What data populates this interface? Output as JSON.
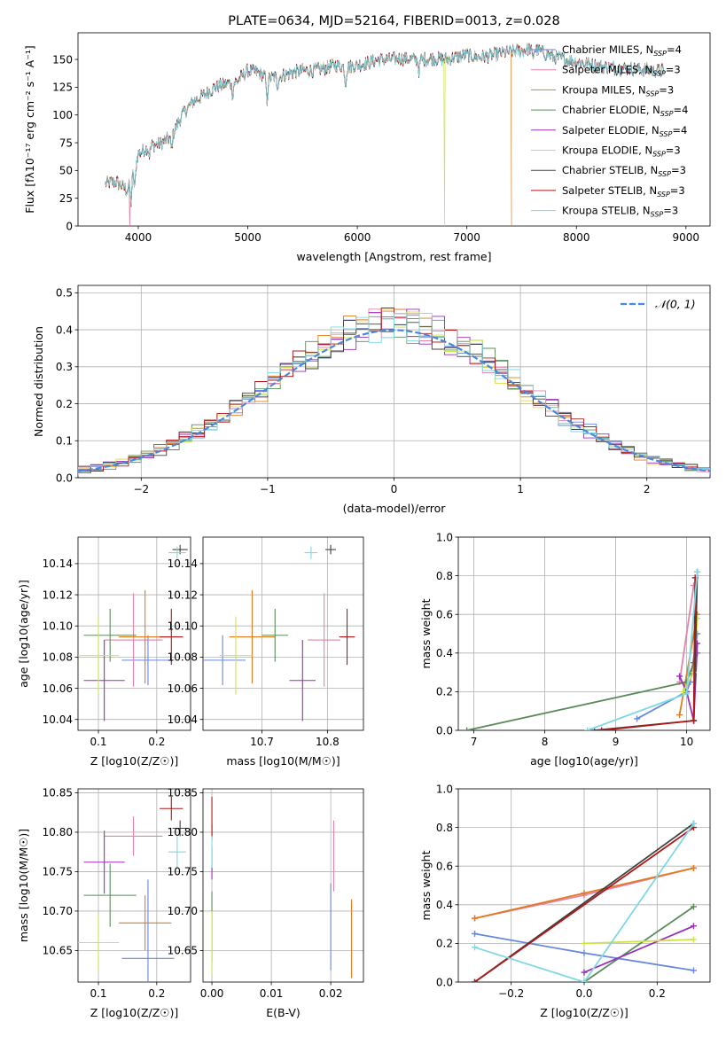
{
  "colors": {
    "chabrier_miles": "#6688dd",
    "salpeter_miles": "#e881aa",
    "kroupa_miles": "#e07b1f",
    "chabrier_elodie": "#5a8c5a",
    "salpeter_elodie": "#9a2ebb",
    "kroupa_elodie": "#cfe24a",
    "chabrier_stelib": "#404040",
    "salpeter_stelib": "#b01818",
    "kroupa_stelib": "#7fd8e2",
    "gauss": "#4a88dd"
  },
  "chart_data": [
    {
      "id": "spectrum",
      "type": "line",
      "title": "PLATE=0634, MJD=52164, FIBERID=0013, z=0.028",
      "xlabel": "wavelength [Angstrom, rest frame]",
      "ylabel": "Flux [fλ10⁻¹⁷ erg cm⁻² s⁻¹ A⁻¹]",
      "xlim": [
        3450,
        9220
      ],
      "ylim": [
        0,
        174
      ],
      "xticks": [
        4000,
        5000,
        6000,
        7000,
        8000,
        9000
      ],
      "yticks": [
        0,
        25,
        50,
        75,
        100,
        125,
        150
      ],
      "continuum": {
        "x": [
          3700,
          3800,
          3900,
          3950,
          4000,
          4100,
          4200,
          4300,
          4400,
          4500,
          4600,
          4700,
          4800,
          4900,
          5000,
          5100,
          5200,
          5300,
          5400,
          5500,
          5600,
          5700,
          5800,
          5900,
          6000,
          6100,
          6200,
          6300,
          6400,
          6500,
          6600,
          6700,
          6800,
          6900,
          7000,
          7100,
          7200,
          7300,
          7400,
          7500,
          7600,
          7700,
          7800,
          7900,
          8000,
          8100,
          8200,
          8300,
          8400,
          8500,
          8600,
          8700,
          8800
        ],
        "y": [
          38,
          40,
          32,
          48,
          65,
          72,
          74,
          80,
          100,
          112,
          118,
          125,
          128,
          130,
          140,
          138,
          133,
          135,
          138,
          140,
          140,
          142,
          145,
          143,
          145,
          147,
          150,
          150,
          151,
          150,
          150,
          151,
          150,
          152,
          154,
          152,
          153,
          155,
          157,
          158,
          160,
          156,
          152,
          150,
          148,
          146,
          144,
          143,
          142,
          142,
          141,
          140,
          140
        ]
      },
      "drops": [
        {
          "series": "Salpeter MILES",
          "x": 3920
        },
        {
          "series": "Kroupa ELODIE",
          "x": 6795
        },
        {
          "series": "Kroupa MILES",
          "x": 7410
        }
      ],
      "legend": [
        "Chabrier MILES, N_SSP=4",
        "Salpeter MILES, N_SSP=3",
        "Kroupa MILES, N_SSP=3",
        "Chabrier ELODIE, N_SSP=4",
        "Salpeter ELODIE, N_SSP=4",
        "Kroupa ELODIE, N_SSP=3",
        "Chabrier STELIB, N_SSP=3",
        "Salpeter STELIB, N_SSP=3",
        "Kroupa STELIB, N_SSP=3"
      ],
      "legend_placement": "upper right",
      "grid": false
    },
    {
      "id": "residuals",
      "type": "histogram",
      "xlabel": "(data-model)/error",
      "ylabel": "Normed distribution",
      "xlim": [
        -2.5,
        2.5
      ],
      "ylim": [
        0,
        0.52
      ],
      "xticks": [
        -2,
        -1,
        0,
        1,
        2
      ],
      "yticks": [
        0.0,
        0.1,
        0.2,
        0.3,
        0.4,
        0.5
      ],
      "bin_width": 0.1,
      "legend": [
        "N(0,1)"
      ],
      "legend_placement": "upper right",
      "grid": true
    },
    {
      "id": "age_vs_Z",
      "type": "scatter",
      "xlabel": "Z [log10(Z/Z☉)]",
      "ylabel": "age  [log10(age/yr)]",
      "xlim": [
        0.065,
        0.258
      ],
      "ylim": [
        10.033,
        10.157
      ],
      "xticks": [
        0.1,
        0.2
      ],
      "yticks": [
        10.04,
        10.06,
        10.08,
        10.1,
        10.12,
        10.14
      ],
      "grid": true,
      "points": [
        {
          "series": "Chabrier MILES",
          "x": 0.185,
          "y": 10.078,
          "xerr": 0.045,
          "yerr": 0.016
        },
        {
          "series": "Salpeter MILES",
          "x": 0.16,
          "y": 10.091,
          "xerr": 0.05,
          "yerr": 0.03
        },
        {
          "series": "Kroupa MILES",
          "x": 0.18,
          "y": 10.093,
          "xerr": 0.045,
          "yerr": 0.03
        },
        {
          "series": "Chabrier ELODIE",
          "x": 0.12,
          "y": 10.094,
          "xerr": 0.045,
          "yerr": 0.017
        },
        {
          "series": "Salpeter ELODIE",
          "x": 0.11,
          "y": 10.065,
          "xerr": 0.035,
          "yerr": 0.026
        },
        {
          "series": "Kroupa ELODIE",
          "x": 0.1,
          "y": 10.081,
          "xerr": 0.035,
          "yerr": 0.025
        },
        {
          "series": "Chabrier STELIB",
          "x": 0.24,
          "y": 10.149,
          "xerr": 0.013,
          "yerr": 0.003
        },
        {
          "series": "Salpeter STELIB",
          "x": 0.225,
          "y": 10.093,
          "xerr": 0.02,
          "yerr": 0.018
        },
        {
          "series": "Kroupa STELIB",
          "x": 0.235,
          "y": 10.147,
          "xerr": 0.015,
          "yerr": 0.004
        }
      ]
    },
    {
      "id": "age_vs_mass",
      "type": "scatter",
      "xlabel": "mass [log10(M/M☉)]",
      "ylabel": "",
      "xlim": [
        10.61,
        10.855
      ],
      "ylim": [
        10.033,
        10.157
      ],
      "xticks": [
        10.7,
        10.8
      ],
      "yticks": [
        10.04,
        10.06,
        10.08,
        10.1,
        10.12,
        10.14
      ],
      "grid": true,
      "points": [
        {
          "series": "Chabrier MILES",
          "x": 10.64,
          "y": 10.078,
          "xerr": 0.035,
          "yerr": 0.016
        },
        {
          "series": "Salpeter MILES",
          "x": 10.795,
          "y": 10.091,
          "xerr": 0.025,
          "yerr": 0.03
        },
        {
          "series": "Kroupa MILES",
          "x": 10.685,
          "y": 10.093,
          "xerr": 0.035,
          "yerr": 0.03
        },
        {
          "series": "Chabrier ELODIE",
          "x": 10.72,
          "y": 10.094,
          "xerr": 0.02,
          "yerr": 0.017
        },
        {
          "series": "Salpeter ELODIE",
          "x": 10.762,
          "y": 10.065,
          "xerr": 0.02,
          "yerr": 0.026
        },
        {
          "series": "Kroupa ELODIE",
          "x": 10.66,
          "y": 10.081,
          "xerr": 0.025,
          "yerr": 0.025
        },
        {
          "series": "Chabrier STELIB",
          "x": 10.805,
          "y": 10.149,
          "xerr": 0.008,
          "yerr": 0.003
        },
        {
          "series": "Salpeter STELIB",
          "x": 10.83,
          "y": 10.093,
          "xerr": 0.012,
          "yerr": 0.018
        },
        {
          "series": "Kroupa STELIB",
          "x": 10.775,
          "y": 10.147,
          "xerr": 0.01,
          "yerr": 0.004
        }
      ]
    },
    {
      "id": "mass_weight_vs_age",
      "type": "line",
      "xlabel": "age  [log10(age/yr)]",
      "ylabel": "mass weight",
      "xlim": [
        6.78,
        10.33
      ],
      "ylim": [
        0,
        1.0
      ],
      "xticks": [
        7,
        8,
        9,
        10
      ],
      "yticks": [
        0.0,
        0.2,
        0.4,
        0.6,
        0.8,
        1.0
      ],
      "grid": true,
      "series": [
        {
          "name": "Chabrier MILES",
          "x": [
            9.3,
            10.0,
            10.05,
            10.15
          ],
          "y": [
            0.06,
            0.2,
            0.25,
            0.5
          ]
        },
        {
          "name": "Salpeter MILES",
          "x": [
            9.9,
            10.1
          ],
          "y": [
            0.25,
            0.75
          ]
        },
        {
          "name": "Kroupa MILES",
          "x": [
            9.9,
            10.15
          ],
          "y": [
            0.08,
            0.6
          ]
        },
        {
          "name": "Chabrier ELODIE",
          "x": [
            6.9,
            10.0,
            10.1,
            10.15
          ],
          "y": [
            0.0,
            0.25,
            0.35,
            0.4
          ]
        },
        {
          "name": "Salpeter ELODIE",
          "x": [
            9.9,
            10.0,
            10.1,
            10.15
          ],
          "y": [
            0.28,
            0.2,
            0.05,
            0.45
          ]
        },
        {
          "name": "Kroupa ELODIE",
          "x": [
            9.95,
            10.1,
            10.15
          ],
          "y": [
            0.2,
            0.3,
            0.58
          ]
        },
        {
          "name": "Chabrier STELIB",
          "x": [
            8.7,
            10.1,
            10.15
          ],
          "y": [
            0.0,
            0.05,
            0.82
          ]
        },
        {
          "name": "Salpeter STELIB",
          "x": [
            8.8,
            10.1,
            10.12
          ],
          "y": [
            0.0,
            0.05,
            0.79
          ]
        },
        {
          "name": "Kroupa STELIB",
          "x": [
            8.6,
            10.0,
            10.15
          ],
          "y": [
            0.0,
            0.19,
            0.82
          ]
        }
      ]
    },
    {
      "id": "mass_vs_Z",
      "type": "scatter",
      "xlabel": "Z [log10(Z/Z☉)]",
      "ylabel": "mass [log10(M/M☉)]",
      "xlim": [
        0.065,
        0.258
      ],
      "ylim": [
        10.61,
        10.855
      ],
      "xticks": [
        0.1,
        0.2
      ],
      "yticks": [
        10.65,
        10.7,
        10.75,
        10.8,
        10.85
      ],
      "grid": true,
      "points": [
        {
          "series": "Chabrier MILES",
          "x": 0.185,
          "y": 10.64,
          "xerr": 0.045,
          "yerr": 0.1
        },
        {
          "series": "Salpeter MILES",
          "x": 0.16,
          "y": 10.795,
          "xerr": 0.05,
          "yerr": 0.025
        },
        {
          "series": "Kroupa MILES",
          "x": 0.18,
          "y": 10.685,
          "xerr": 0.045,
          "yerr": 0.035
        },
        {
          "series": "Chabrier ELODIE",
          "x": 0.12,
          "y": 10.72,
          "xerr": 0.045,
          "yerr": 0.04
        },
        {
          "series": "Salpeter ELODIE",
          "x": 0.11,
          "y": 10.762,
          "xerr": 0.035,
          "yerr": 0.04
        },
        {
          "series": "Kroupa ELODIE",
          "x": 0.1,
          "y": 10.66,
          "xerr": 0.035,
          "yerr": 0.035
        },
        {
          "series": "Chabrier STELIB",
          "x": 0.24,
          "y": 10.805,
          "xerr": 0.013,
          "yerr": 0.01
        },
        {
          "series": "Salpeter STELIB",
          "x": 0.225,
          "y": 10.83,
          "xerr": 0.02,
          "yerr": 0.015
        },
        {
          "series": "Kroupa STELIB",
          "x": 0.235,
          "y": 10.775,
          "xerr": 0.015,
          "yerr": 0.02
        }
      ]
    },
    {
      "id": "mass_vs_ebv",
      "type": "scatter",
      "xlabel": "E(B-V)",
      "ylabel": "",
      "xlim": [
        -0.0015,
        0.0255
      ],
      "ylim": [
        10.61,
        10.855
      ],
      "xticks": [
        0.0,
        0.01,
        0.02
      ],
      "yticks": [
        10.65,
        10.7,
        10.75,
        10.8,
        10.85
      ],
      "grid": true,
      "points": [
        {
          "series": "Chabrier MILES",
          "x": 0.02,
          "y": 10.68,
          "xerr": 0,
          "yerr": 0.055
        },
        {
          "series": "Salpeter MILES",
          "x": 0.0205,
          "y": 10.77,
          "xerr": 0,
          "yerr": 0.045
        },
        {
          "series": "Kroupa MILES",
          "x": 0.0235,
          "y": 10.665,
          "xerr": 0,
          "yerr": 0.05
        },
        {
          "series": "Chabrier ELODIE",
          "x": 0.0,
          "y": 10.68,
          "xerr": 0,
          "yerr": 0.045
        },
        {
          "series": "Salpeter ELODIE",
          "x": 0.0,
          "y": 10.76,
          "xerr": 0,
          "yerr": 0.02
        },
        {
          "series": "Kroupa ELODIE",
          "x": 0.0,
          "y": 10.66,
          "xerr": 0,
          "yerr": 0.04
        },
        {
          "series": "Chabrier STELIB",
          "x": 0.0,
          "y": 10.8,
          "xerr": 0,
          "yerr": 0.01
        },
        {
          "series": "Salpeter STELIB",
          "x": 0.0,
          "y": 10.82,
          "xerr": 0,
          "yerr": 0.025
        },
        {
          "series": "Kroupa STELIB",
          "x": 0.0,
          "y": 10.775,
          "xerr": 0,
          "yerr": 0.02
        }
      ]
    },
    {
      "id": "mass_weight_vs_Z",
      "type": "line",
      "xlabel": "Z [log10(Z/Z☉)]",
      "ylabel": "mass weight",
      "xlim": [
        -0.345,
        0.345
      ],
      "ylim": [
        0,
        1.0
      ],
      "xticks": [
        -0.2,
        0.0,
        0.2
      ],
      "yticks": [
        0.0,
        0.2,
        0.4,
        0.6,
        0.8,
        1.0
      ],
      "grid": true,
      "series": [
        {
          "name": "Chabrier MILES",
          "x": [
            -0.3,
            0.0,
            0.3
          ],
          "y": [
            0.25,
            0.15,
            0.06
          ]
        },
        {
          "name": "Salpeter MILES",
          "x": [
            -0.3,
            0.0,
            0.3
          ],
          "y": [
            0.33,
            0.45,
            0.59
          ]
        },
        {
          "name": "Kroupa MILES",
          "x": [
            -0.3,
            0.0,
            0.3
          ],
          "y": [
            0.33,
            0.46,
            0.59
          ]
        },
        {
          "name": "Chabrier ELODIE",
          "x": [
            0.0,
            0.3
          ],
          "y": [
            0.0,
            0.39
          ]
        },
        {
          "name": "Salpeter ELODIE",
          "x": [
            0.0,
            0.3
          ],
          "y": [
            0.05,
            0.29
          ]
        },
        {
          "name": "Kroupa ELODIE",
          "x": [
            0.0,
            0.3
          ],
          "y": [
            0.2,
            0.22
          ]
        },
        {
          "name": "Chabrier STELIB",
          "x": [
            -0.3,
            0.3
          ],
          "y": [
            0.0,
            0.82
          ]
        },
        {
          "name": "Salpeter STELIB",
          "x": [
            -0.3,
            0.3
          ],
          "y": [
            0.0,
            0.8
          ]
        },
        {
          "name": "Kroupa STELIB",
          "x": [
            -0.3,
            0.0,
            0.3
          ],
          "y": [
            0.18,
            0.0,
            0.82
          ]
        }
      ]
    }
  ]
}
